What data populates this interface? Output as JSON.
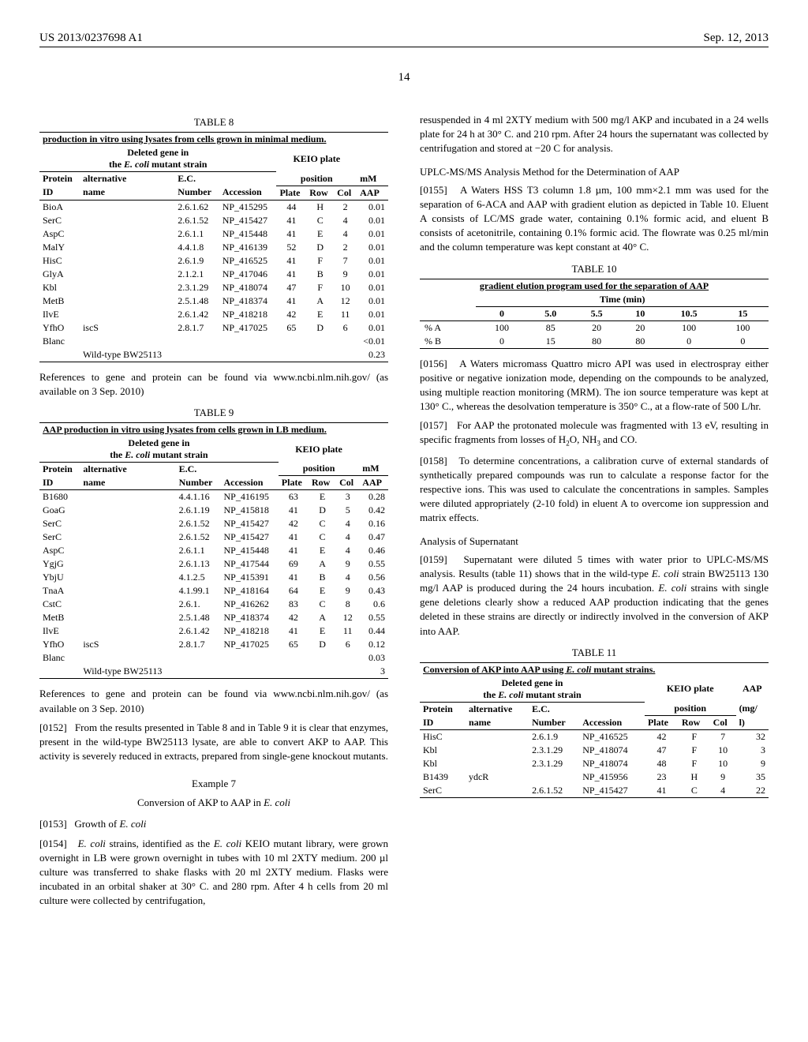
{
  "header": {
    "publication_no": "US 2013/0237698 A1",
    "date": "Sep. 12, 2013",
    "page_number": "14"
  },
  "table8": {
    "title": "TABLE 8",
    "caption": "production in vitro using lysates from cells grown in minimal medium.",
    "group_headers": {
      "deleted_gene": "Deleted gene in the E. coli mutant strain",
      "keio": "KEIO plate",
      "mm": "mM"
    },
    "col_headers": [
      "Protein",
      "alternative",
      "E.C.",
      "",
      "position",
      "",
      "",
      ""
    ],
    "sub_headers": [
      "ID",
      "name",
      "Number",
      "Accession",
      "Plate",
      "Row",
      "Col",
      "AAP"
    ],
    "rows": [
      [
        "BioA",
        "",
        "2.6.1.62",
        "NP_415295",
        "44",
        "H",
        "2",
        "0.01"
      ],
      [
        "SerC",
        "",
        "2.6.1.52",
        "NP_415427",
        "41",
        "C",
        "4",
        "0.01"
      ],
      [
        "AspC",
        "",
        "2.6.1.1",
        "NP_415448",
        "41",
        "E",
        "4",
        "0.01"
      ],
      [
        "MalY",
        "",
        "4.4.1.8",
        "NP_416139",
        "52",
        "D",
        "2",
        "0.01"
      ],
      [
        "HisC",
        "",
        "2.6.1.9",
        "NP_416525",
        "41",
        "F",
        "7",
        "0.01"
      ],
      [
        "GlyA",
        "",
        "2.1.2.1",
        "NP_417046",
        "41",
        "B",
        "9",
        "0.01"
      ],
      [
        "Kbl",
        "",
        "2.3.1.29",
        "NP_418074",
        "47",
        "F",
        "10",
        "0.01"
      ],
      [
        "MetB",
        "",
        "2.5.1.48",
        "NP_418374",
        "41",
        "A",
        "12",
        "0.01"
      ],
      [
        "IlvE",
        "",
        "2.6.1.42",
        "NP_418218",
        "42",
        "E",
        "11",
        "0.01"
      ],
      [
        "YfhO",
        "iscS",
        "2.8.1.7",
        "NP_417025",
        "65",
        "D",
        "6",
        "0.01"
      ],
      [
        "Blanc",
        "",
        "",
        "",
        "",
        "",
        "",
        "<0.01"
      ],
      [
        "",
        "Wild-type BW25113",
        "",
        "",
        "",
        "",
        "",
        "0.23"
      ]
    ]
  },
  "table8_footnote": "References to gene and protein can be found via www.ncbi.nlm.nih.gov/ (as available on 3 Sep. 2010)",
  "table9": {
    "title": "TABLE 9",
    "caption": "AAP production in vitro using lysates from cells grown in LB medium.",
    "group_headers": {
      "deleted_gene": "Deleted gene in the E. coli mutant strain",
      "keio": "KEIO plate",
      "mm": "mM"
    },
    "sub_headers": [
      "ID",
      "name",
      "Number",
      "Accession",
      "Plate",
      "Row",
      "Col",
      "AAP"
    ],
    "rows": [
      [
        "B1680",
        "",
        "4.4.1.16",
        "NP_416195",
        "63",
        "E",
        "3",
        "0.28"
      ],
      [
        "GoaG",
        "",
        "2.6.1.19",
        "NP_415818",
        "41",
        "D",
        "5",
        "0.42"
      ],
      [
        "SerC",
        "",
        "2.6.1.52",
        "NP_415427",
        "42",
        "C",
        "4",
        "0.16"
      ],
      [
        "SerC",
        "",
        "2.6.1.52",
        "NP_415427",
        "41",
        "C",
        "4",
        "0.47"
      ],
      [
        "AspC",
        "",
        "2.6.1.1",
        "NP_415448",
        "41",
        "E",
        "4",
        "0.46"
      ],
      [
        "YgjG",
        "",
        "2.6.1.13",
        "NP_417544",
        "69",
        "A",
        "9",
        "0.55"
      ],
      [
        "YbjU",
        "",
        "4.1.2.5",
        "NP_415391",
        "41",
        "B",
        "4",
        "0.56"
      ],
      [
        "TnaA",
        "",
        "4.1.99.1",
        "NP_418164",
        "64",
        "E",
        "9",
        "0.43"
      ],
      [
        "CstC",
        "",
        "2.6.1.",
        "NP_416262",
        "83",
        "C",
        "8",
        "0.6"
      ],
      [
        "MetB",
        "",
        "2.5.1.48",
        "NP_418374",
        "42",
        "A",
        "12",
        "0.55"
      ],
      [
        "IlvE",
        "",
        "2.6.1.42",
        "NP_418218",
        "41",
        "E",
        "11",
        "0.44"
      ],
      [
        "YfhO",
        "iscS",
        "2.8.1.7",
        "NP_417025",
        "65",
        "D",
        "6",
        "0.12"
      ],
      [
        "Blanc",
        "",
        "",
        "",
        "",
        "",
        "",
        "0.03"
      ],
      [
        "",
        "Wild-type BW25113",
        "",
        "",
        "",
        "",
        "",
        "3"
      ]
    ]
  },
  "table9_footnote": "References to gene and protein can be found via www.ncbi.nlm.nih.gov/ (as available on 3 Sep. 2010)",
  "para0152": {
    "num": "[0152]",
    "text": "From the results presented in Table 8 and in Table 9 it is clear that enzymes, present in the wild-type BW25113 lysate, are able to convert AKP to AAP. This activity is severely reduced in extracts, prepared from single-gene knockout mutants."
  },
  "example7": {
    "label": "Example 7",
    "title": "Conversion of AKP to AAP in E. coli"
  },
  "para0153": {
    "num": "[0153]",
    "text": "Growth of E. coli"
  },
  "para0154": {
    "num": "[0154]",
    "text_left": "E. coli strains, identified as the E. coli KEIO mutant library, were grown overnight in LB were grown overnight in tubes with 10 ml 2XTY medium. 200 µl culture was transferred to shake flasks with 20 ml 2XTY medium. Flasks were incubated in an orbital shaker at 30° C. and 280 rpm. After 4 h cells from 20 ml culture were collected by centrifugation,",
    "text_right": "resuspended in 4 ml 2XTY medium with 500 mg/l AKP and incubated in a 24 wells plate for 24 h at 30° C. and 210 rpm. After 24 hours the supernatant was collected by centrifugation and stored at −20 C for analysis."
  },
  "uplc_heading": "UPLC-MS/MS Analysis Method for the Determination of AAP",
  "para0155": {
    "num": "[0155]",
    "text": "A Waters HSS T3 column 1.8 µm, 100 mm×2.1 mm was used for the separation of 6-ACA and AAP with gradient elution as depicted in Table 10. Eluent A consists of LC/MS grade water, containing 0.1% formic acid, and eluent B consists of acetonitrile, containing 0.1% formic acid. The flowrate was 0.25 ml/min and the column temperature was kept constant at 40° C."
  },
  "table10": {
    "title": "TABLE 10",
    "caption": "gradient elution program used for the separation of AAP",
    "time_label": "Time (min)",
    "times": [
      "0",
      "5.0",
      "5.5",
      "10",
      "10.5",
      "15"
    ],
    "rows": [
      [
        "% A",
        "100",
        "85",
        "20",
        "20",
        "100",
        "100"
      ],
      [
        "% B",
        "0",
        "15",
        "80",
        "80",
        "0",
        "0"
      ]
    ]
  },
  "para0156": {
    "num": "[0156]",
    "text": "A Waters micromass Quattro micro API was used in electrospray either positive or negative ionization mode, depending on the compounds to be analyzed, using multiple reaction monitoring (MRM). The ion source temperature was kept at 130° C., whereas the desolvation temperature is 350° C., at a flow-rate of 500 L/hr."
  },
  "para0157": {
    "num": "[0157]",
    "text": "For AAP the protonated molecule was fragmented with 13 eV, resulting in specific fragments from losses of H₂O, NH₃ and CO."
  },
  "para0158": {
    "num": "[0158]",
    "text": "To determine concentrations, a calibration curve of external standards of synthetically prepared compounds was run to calculate a response factor for the respective ions. This was used to calculate the concentrations in samples. Samples were diluted appropriately (2-10 fold) in eluent A to overcome ion suppression and matrix effects."
  },
  "analysis_heading": "Analysis of Supernatant",
  "para0159": {
    "num": "[0159]",
    "text": "Supernatant were diluted 5 times with water prior to UPLC-MS/MS analysis. Results (table 11) shows that in the wild-type E. coli strain BW25113 130 mg/l AAP is produced during the 24 hours incubation. E. coli strains with single gene deletions clearly show a reduced AAP production indicating that the genes deleted in these strains are directly or indirectly involved in the conversion of AKP into AAP."
  },
  "table11": {
    "title": "TABLE 11",
    "caption": "Conversion of AKP into AAP using E. coli mutant strains.",
    "group_headers": {
      "deleted_gene": "Deleted gene in the E. coli mutant strain",
      "keio": "KEIO plate",
      "aap": "AAP"
    },
    "col_headers": [
      "Protein",
      "alternative",
      "E.C.",
      "",
      "position",
      "",
      "",
      "(mg/"
    ],
    "sub_headers": [
      "ID",
      "name",
      "Number",
      "Accession",
      "Plate",
      "Row",
      "Col",
      "l)"
    ],
    "rows": [
      [
        "HisC",
        "",
        "2.6.1.9",
        "NP_416525",
        "42",
        "F",
        "7",
        "32"
      ],
      [
        "Kbl",
        "",
        "2.3.1.29",
        "NP_418074",
        "47",
        "F",
        "10",
        "3"
      ],
      [
        "Kbl",
        "",
        "2.3.1.29",
        "NP_418074",
        "48",
        "F",
        "10",
        "9"
      ],
      [
        "B1439",
        "ydcR",
        "",
        "NP_415956",
        "23",
        "H",
        "9",
        "35"
      ],
      [
        "SerC",
        "",
        "2.6.1.52",
        "NP_415427",
        "41",
        "C",
        "4",
        "22"
      ]
    ]
  }
}
